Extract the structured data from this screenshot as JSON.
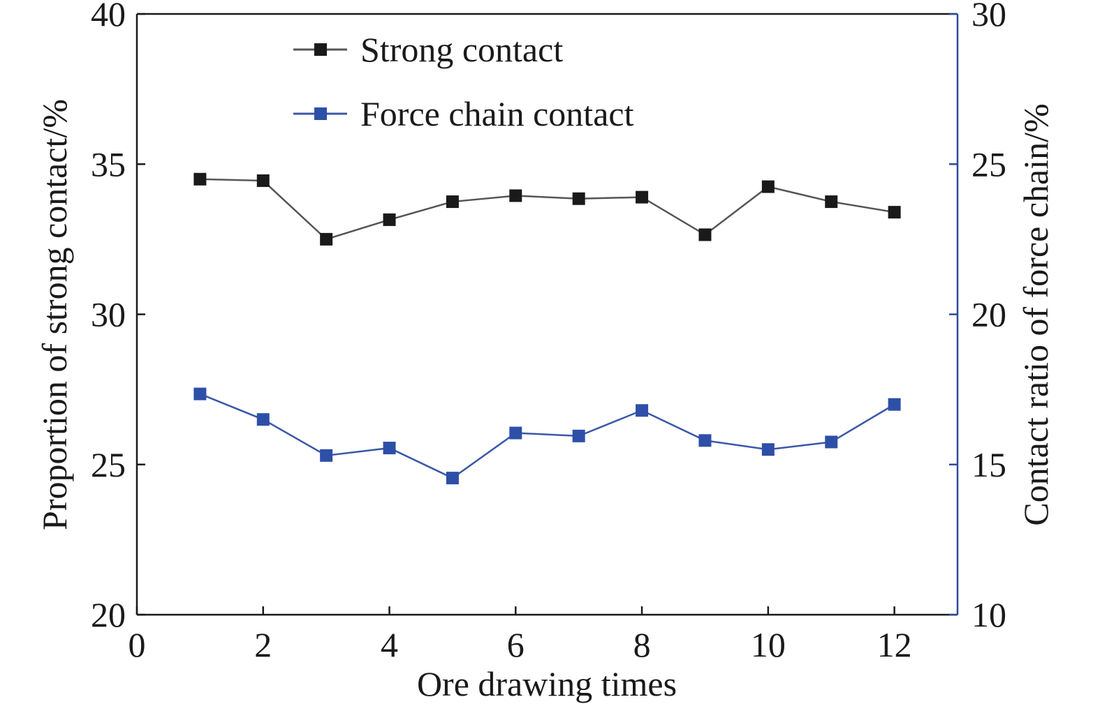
{
  "chart_data": {
    "type": "line",
    "xlabel": "Ore drawing times",
    "ylabel_left": "Proportion of strong contact/%",
    "ylabel_right": "Contact ratio of force chain/%",
    "xlim": [
      0,
      13
    ],
    "x_ticks": [
      0,
      2,
      4,
      6,
      8,
      10,
      12
    ],
    "ylim_left": [
      20,
      40
    ],
    "y_ticks_left": [
      20,
      25,
      30,
      35,
      40
    ],
    "ylim_right": [
      10,
      30
    ],
    "y_ticks_right": [
      10,
      15,
      20,
      25,
      30
    ],
    "grid": false,
    "legend_position": "top-center",
    "series": [
      {
        "name": "Strong contact",
        "axis": "left",
        "color": "#1a1a1a",
        "line_color": "#555555",
        "x": [
          1,
          2,
          3,
          4,
          5,
          6,
          7,
          8,
          9,
          10,
          11,
          12
        ],
        "values": [
          34.5,
          34.45,
          32.5,
          33.15,
          33.75,
          33.95,
          33.85,
          33.9,
          32.65,
          34.25,
          33.75,
          33.4
        ]
      },
      {
        "name": "Force chain contact",
        "axis": "right",
        "color": "#2e4fa8",
        "line_color": "#3a57a8",
        "x": [
          1,
          2,
          3,
          4,
          5,
          6,
          7,
          8,
          9,
          10,
          11,
          12
        ],
        "values": [
          17.35,
          16.5,
          15.3,
          15.55,
          14.55,
          16.05,
          15.95,
          16.8,
          15.8,
          15.5,
          15.75,
          17.0
        ]
      }
    ],
    "colors": {
      "left_axis": "#1a1a1a",
      "right_axis": "#2e4a9a"
    }
  }
}
